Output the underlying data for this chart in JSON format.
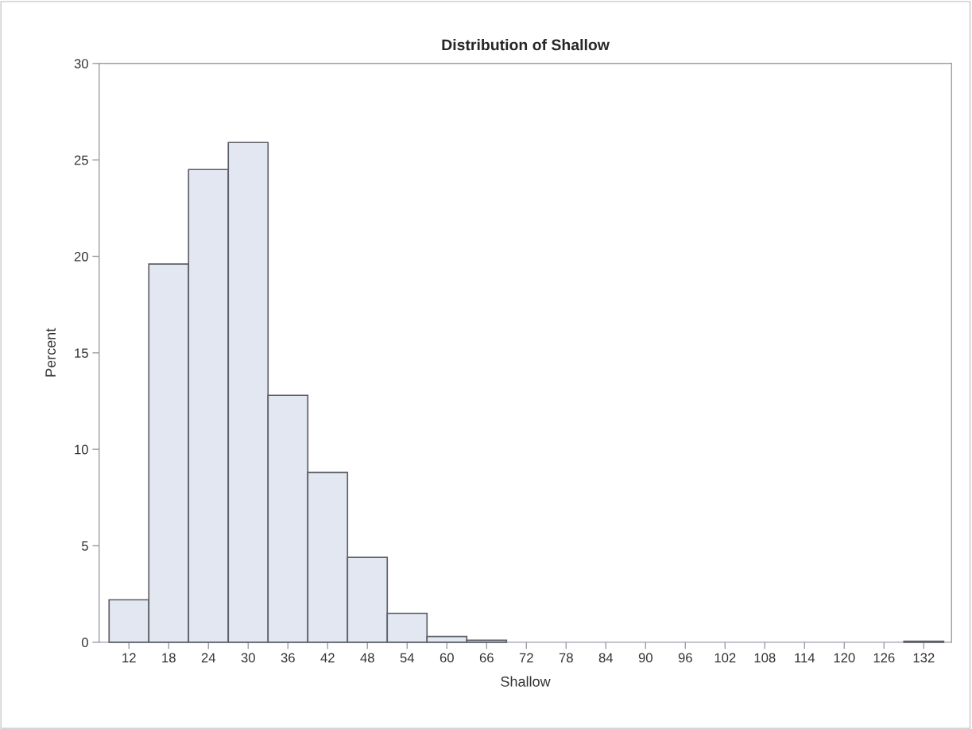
{
  "chart_data": {
    "type": "histogram",
    "title": "Distribution of Shallow",
    "xlabel": "Shallow",
    "ylabel": "Percent",
    "bins": [
      9,
      15,
      21,
      27,
      33,
      39,
      45,
      51,
      57,
      63,
      69,
      75,
      81,
      87,
      93,
      99,
      105,
      111,
      117,
      123,
      129,
      135
    ],
    "values": [
      2.2,
      19.6,
      24.5,
      25.9,
      12.8,
      8.8,
      4.4,
      1.5,
      0.3,
      0.1,
      0,
      0,
      0,
      0,
      0,
      0,
      0,
      0,
      0,
      0,
      0.05
    ],
    "color": "#e3e7f1",
    "xlim": [
      7.5,
      136.2
    ],
    "xticks": [
      12,
      18,
      24,
      30,
      36,
      42,
      48,
      54,
      60,
      66,
      72,
      78,
      84,
      90,
      96,
      102,
      108,
      114,
      120,
      126,
      132
    ],
    "ylim": [
      0,
      30
    ],
    "yticks": [
      0,
      5,
      10,
      15,
      20,
      25,
      30
    ],
    "grid": false,
    "legend": false
  }
}
